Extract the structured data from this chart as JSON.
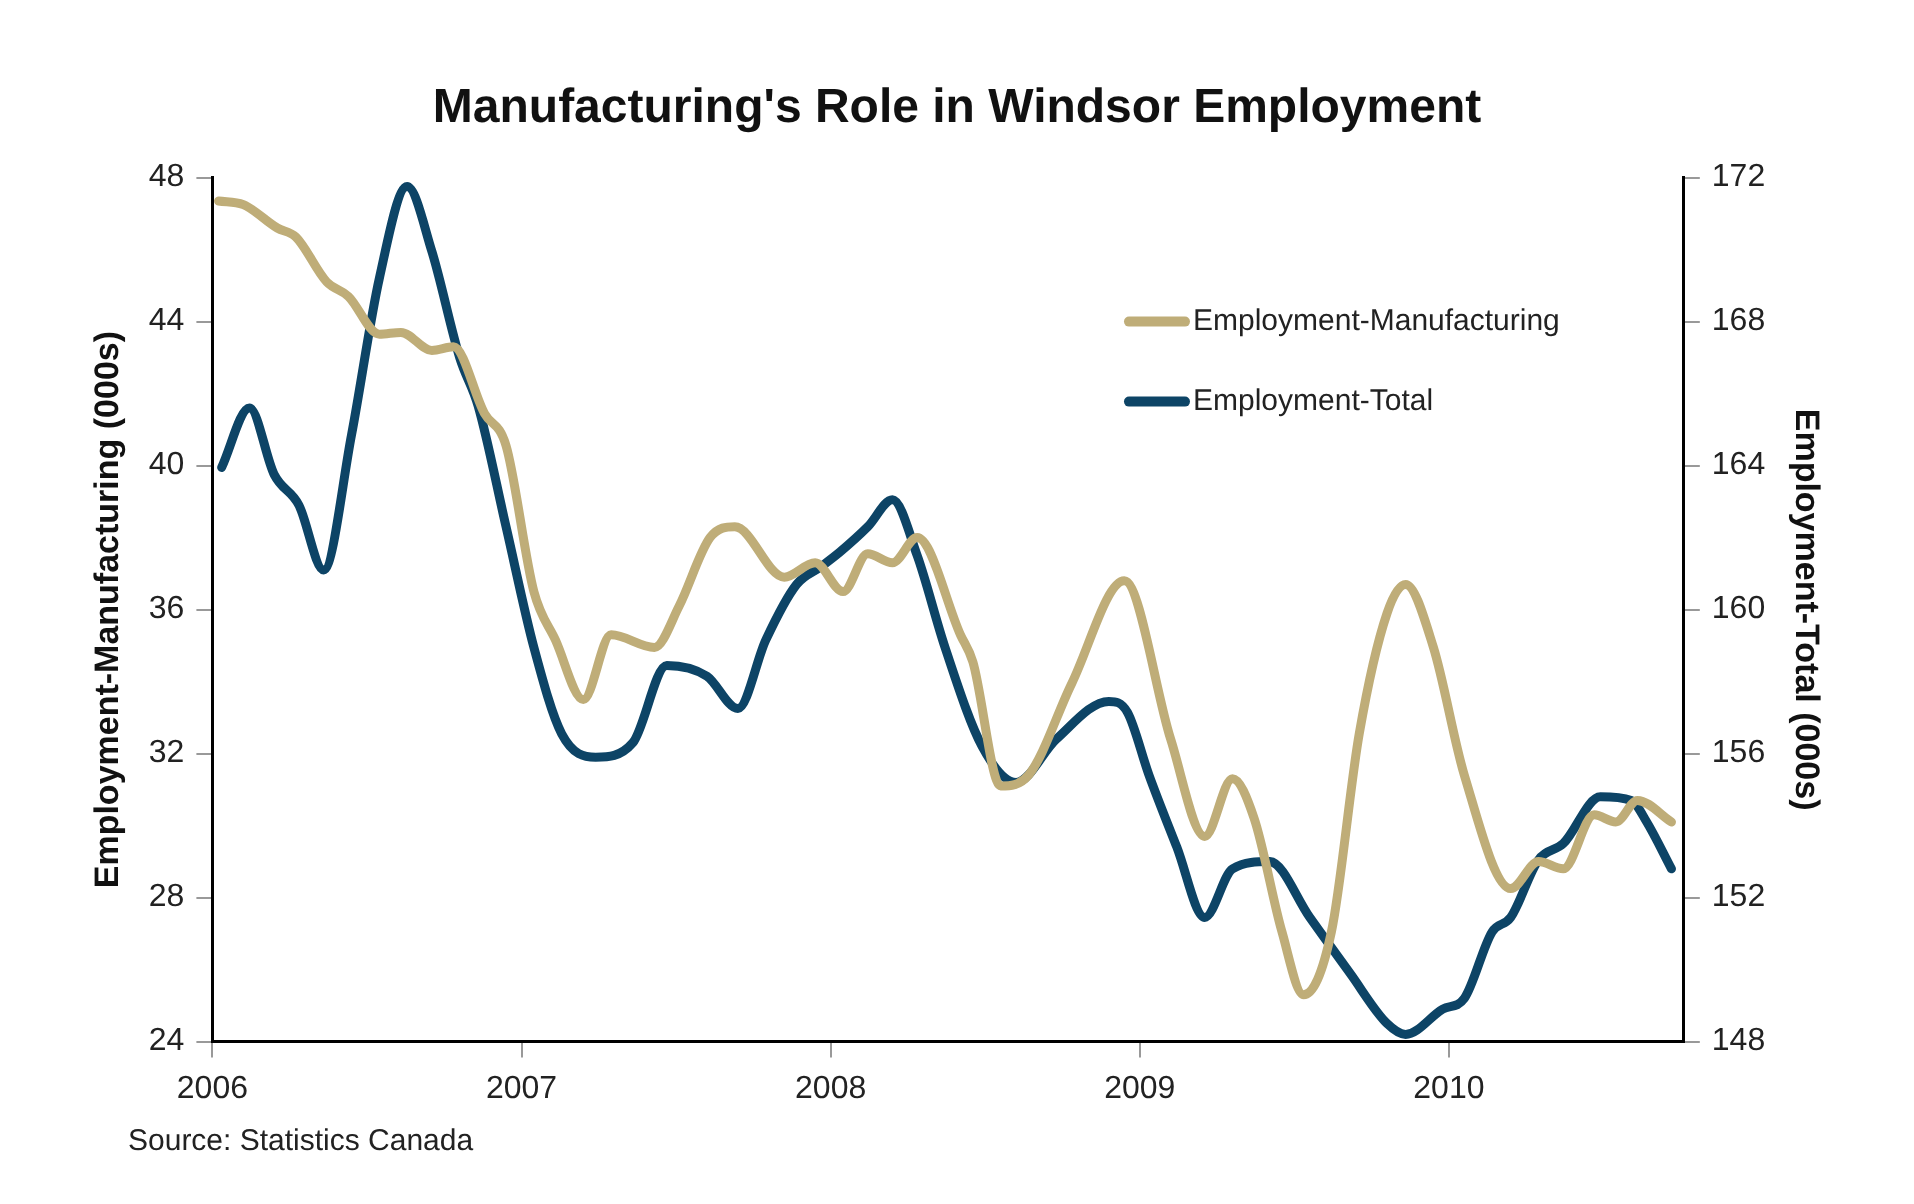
{
  "chart_data": {
    "type": "line",
    "title": "Manufacturing's Role in Windsor Employment",
    "ylabel": "Employment-Manufacturing (000s)",
    "y2label": "Employment-Total (000s)",
    "xlim": [
      2006,
      2010.76
    ],
    "xticks": [
      2006,
      2007,
      2008,
      2009,
      2010
    ],
    "ylim": [
      24,
      48
    ],
    "yticks": [
      24,
      28,
      32,
      36,
      40,
      44,
      48
    ],
    "y2lim": [
      148,
      172
    ],
    "y2ticks": [
      148,
      152,
      156,
      160,
      164,
      168,
      172
    ],
    "grid": false,
    "legend": "top right",
    "marker": "none",
    "line_style": "solid",
    "annotations": [
      "Source: Statistics Canada"
    ],
    "series": [
      {
        "name": "Employment-Manufacturing",
        "color": "#bfad78",
        "x": [
          2006.02,
          2006.1,
          2006.21,
          2006.27,
          2006.37,
          2006.44,
          2006.54,
          2006.61,
          2006.71,
          2006.78,
          2006.88,
          2006.95,
          2007.04,
          2007.11,
          2007.2,
          2007.29,
          2007.43,
          2007.51,
          2007.61,
          2007.69,
          2007.85,
          2007.95,
          2008.04,
          2008.12,
          2008.2,
          2008.28,
          2008.42,
          2008.46,
          2008.55,
          2008.64,
          2008.78,
          2008.95,
          2009.1,
          2009.21,
          2009.3,
          2009.37,
          2009.46,
          2009.53,
          2009.62,
          2009.71,
          2009.8,
          2009.86,
          2009.95,
          2010.05,
          2010.2,
          2010.29,
          2010.37,
          2010.47,
          2010.54,
          2010.61,
          2010.72
        ],
        "values": [
          47.35,
          47.25,
          46.6,
          46.35,
          45.1,
          44.7,
          43.65,
          43.7,
          43.2,
          43.3,
          41.45,
          40.55,
          36.5,
          35.15,
          33.5,
          35.3,
          34.95,
          36.1,
          38.0,
          38.3,
          36.9,
          37.3,
          36.5,
          37.55,
          37.3,
          38.0,
          35.3,
          34.55,
          31.1,
          31.4,
          33.95,
          36.8,
          32.4,
          29.7,
          31.3,
          30.2,
          27.05,
          25.3,
          27.05,
          32.55,
          35.9,
          36.7,
          34.95,
          31.4,
          28.25,
          29.0,
          28.8,
          30.3,
          30.1,
          30.7,
          30.1
        ]
      },
      {
        "name": "Employment-Total",
        "color": "#0d4466",
        "axis": "y2",
        "x": [
          2006.03,
          2006.12,
          2006.2,
          2006.28,
          2006.36,
          2006.45,
          2006.54,
          2006.63,
          2006.71,
          2006.8,
          2006.86,
          2006.95,
          2007.04,
          2007.13,
          2007.24,
          2007.36,
          2007.47,
          2007.6,
          2007.7,
          2007.79,
          2007.89,
          2007.97,
          2008.03,
          2008.12,
          2008.2,
          2008.28,
          2008.37,
          2008.49,
          2008.6,
          2008.73,
          2008.9,
          2008.96,
          2009.03,
          2009.12,
          2009.21,
          2009.3,
          2009.42,
          2009.55,
          2009.68,
          2009.8,
          2009.86,
          2009.98,
          2010.05,
          2010.14,
          2010.2,
          2010.29,
          2010.37,
          2010.49,
          2010.59,
          2010.64,
          2010.72
        ],
        "values": [
          163.95,
          165.6,
          163.75,
          162.9,
          161.1,
          164.85,
          169.2,
          171.75,
          169.95,
          167.0,
          165.65,
          162.3,
          158.95,
          156.55,
          155.9,
          156.3,
          158.45,
          158.15,
          157.25,
          159.15,
          160.7,
          161.2,
          161.6,
          162.3,
          163.05,
          161.5,
          158.95,
          156.2,
          155.2,
          156.4,
          157.45,
          157.15,
          155.4,
          153.4,
          151.45,
          152.8,
          153.0,
          151.45,
          149.9,
          148.5,
          148.2,
          148.9,
          149.2,
          151.05,
          151.45,
          153.05,
          153.5,
          154.8,
          154.7,
          154.1,
          152.8
        ]
      }
    ]
  }
}
